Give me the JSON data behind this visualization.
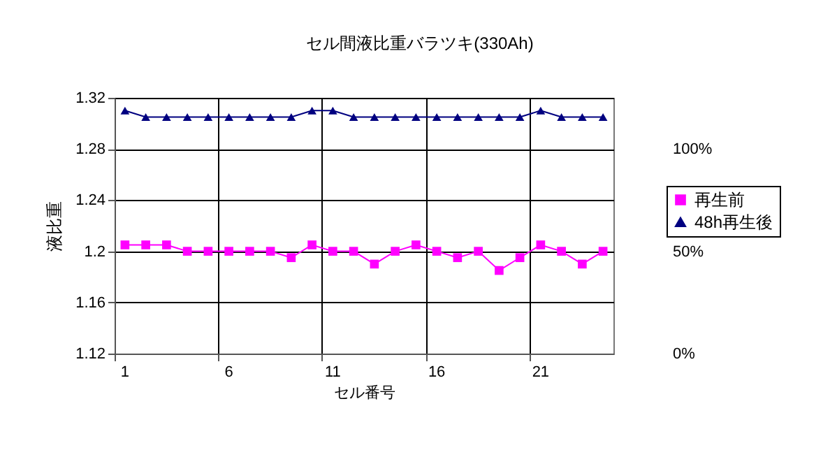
{
  "chart_data": {
    "type": "line",
    "title": "セル間液比重バラツキ(330Ah)",
    "xlabel": "セル番号",
    "ylabel": "液比重",
    "categories": [
      "1",
      null,
      null,
      null,
      null,
      "6",
      null,
      null,
      null,
      null,
      "11",
      null,
      null,
      null,
      null,
      "16",
      null,
      null,
      null,
      null,
      "21",
      null,
      null,
      null
    ],
    "series": [
      {
        "name": "再生前",
        "color": "#ff00ff",
        "marker": "square",
        "values": [
          1.205,
          1.205,
          1.205,
          1.2,
          1.2,
          1.2,
          1.2,
          1.2,
          1.195,
          1.205,
          1.2,
          1.2,
          1.19,
          1.2,
          1.205,
          1.2,
          1.195,
          1.2,
          1.185,
          1.195,
          1.205,
          1.2,
          1.19,
          1.2
        ]
      },
      {
        "name": "48h再生後",
        "color": "#000080",
        "marker": "triangle",
        "values": [
          1.31,
          1.305,
          1.305,
          1.305,
          1.305,
          1.305,
          1.305,
          1.305,
          1.305,
          1.31,
          1.31,
          1.305,
          1.305,
          1.305,
          1.305,
          1.305,
          1.305,
          1.305,
          1.305,
          1.305,
          1.31,
          1.305,
          1.305,
          1.305
        ]
      }
    ],
    "ylim": [
      1.12,
      1.32
    ],
    "yticks": [
      1.12,
      1.16,
      1.2,
      1.24,
      1.28,
      1.32
    ],
    "y2lim": [
      0,
      125
    ],
    "y2ticks": [
      {
        "value": 0,
        "label": "0%"
      },
      {
        "value": 50,
        "label": "50%"
      },
      {
        "value": 100,
        "label": "100%"
      }
    ],
    "grid": true,
    "legend": "right",
    "line_style": "solid"
  }
}
